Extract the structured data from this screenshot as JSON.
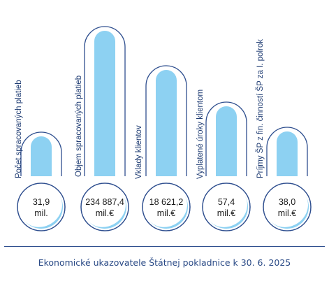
{
  "chart_data": {
    "type": "bar",
    "title": "Ekonomické ukazovatele Štátnej pokladnice k 30. 6. 2025",
    "categories": [
      "Počet spracovaných platieb",
      "Objem spracovaných platieb",
      "Vklady klientov",
      "Vyplatené úroky klientom",
      "Príjmy ŠP z fin. činností ŠP za I. polrok"
    ],
    "values": [
      31.9,
      234887.4,
      18621.2,
      57.4,
      38.0
    ],
    "value_labels": [
      [
        "31,9",
        "mil."
      ],
      [
        "234 887,4",
        "mil.€"
      ],
      [
        "18 621,2",
        "mil.€"
      ],
      [
        "57,4",
        "mil.€"
      ],
      [
        "38,0",
        "mil.€"
      ]
    ],
    "colors": {
      "bar_fill": "#8dd1f2",
      "outline": "#2f4f8f",
      "crescent": "#8dd1f2"
    }
  }
}
